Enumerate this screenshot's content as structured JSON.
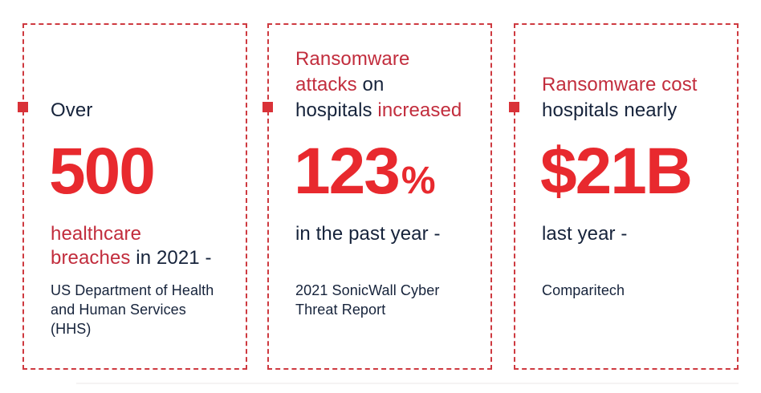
{
  "colors": {
    "red_bright": "#E8292E",
    "red_dark": "#C22D3D",
    "navy": "#16233B",
    "border_red": "#CE3A40",
    "marker_red": "#D93238",
    "page_bg": "#FFFFFF"
  },
  "cards": [
    {
      "heading_lines": [
        [
          {
            "text": "Over",
            "emphasis": "navy"
          }
        ]
      ],
      "stat": {
        "value": "500",
        "suffix": ""
      },
      "desc_lines": [
        [
          {
            "text": "healthcare",
            "emphasis": "red"
          }
        ],
        [
          {
            "text": "breaches",
            "emphasis": "red"
          },
          {
            "text": " in 2021 -",
            "emphasis": "navy"
          }
        ]
      ],
      "source_lines": [
        "US Department of Health",
        "and Human Services",
        "(HHS)"
      ]
    },
    {
      "heading_lines": [
        [
          {
            "text": "Ransomware",
            "emphasis": "red"
          }
        ],
        [
          {
            "text": "attacks",
            "emphasis": "red"
          },
          {
            "text": " on",
            "emphasis": "navy"
          }
        ],
        [
          {
            "text": "hospitals ",
            "emphasis": "navy"
          },
          {
            "text": "increased",
            "emphasis": "red"
          }
        ]
      ],
      "stat": {
        "value": "123",
        "suffix": "%"
      },
      "desc_lines": [
        [
          {
            "text": "in the past year -",
            "emphasis": "navy"
          }
        ]
      ],
      "source_lines": [
        "2021 SonicWall Cyber",
        "Threat Report"
      ]
    },
    {
      "heading_lines": [
        [
          {
            "text": "Ransomware cost",
            "emphasis": "red"
          }
        ],
        [
          {
            "text": "hospitals nearly",
            "emphasis": "navy"
          }
        ]
      ],
      "stat": {
        "value": "$21B",
        "suffix": ""
      },
      "desc_lines": [
        [
          {
            "text": "last year -",
            "emphasis": "navy"
          }
        ]
      ],
      "source_lines": [
        "Comparitech"
      ]
    }
  ]
}
